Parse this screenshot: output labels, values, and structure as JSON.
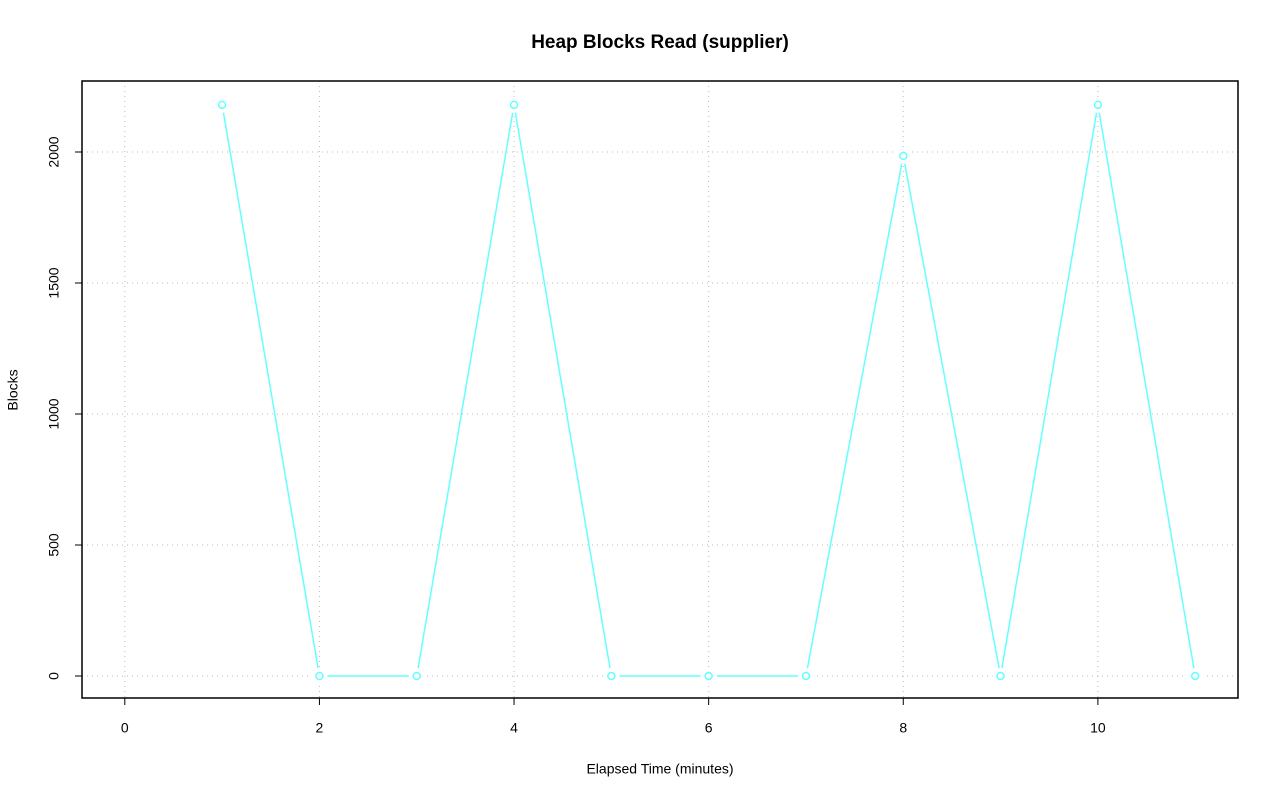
{
  "chart_data": {
    "type": "line",
    "title": "Heap Blocks Read (supplier)",
    "x_label": "Elapsed Time (minutes)",
    "y_label": "Blocks",
    "x": [
      1,
      2,
      3,
      4,
      5,
      6,
      7,
      8,
      9,
      10,
      11
    ],
    "values": [
      2180,
      0,
      0,
      2180,
      0,
      0,
      0,
      1985,
      0,
      2180,
      0
    ],
    "color": "#66ffff",
    "xlim": [
      -0.44,
      11.44
    ],
    "xticks": [
      0,
      2,
      4,
      6,
      8,
      10
    ],
    "ylim": [
      -84,
      2271
    ],
    "yticks": [
      0,
      500,
      1000,
      1500,
      2000
    ],
    "grid": true
  }
}
